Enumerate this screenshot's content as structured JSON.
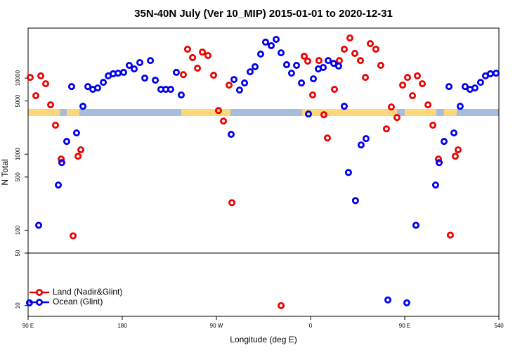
{
  "chart_data": [
    {
      "type": "scatter",
      "title": "35N-40N July (Ver 10_MIP)   2015-01-01 to 2020-12-31",
      "ylabel": "N Total",
      "log_y": true,
      "xlim": [
        90,
        540
      ],
      "ylim": [
        50,
        45400
      ],
      "yticks": [
        100,
        500,
        1000,
        5000,
        10000
      ],
      "series": [
        {
          "color": "#ee0000",
          "x": [
            92,
            97.4,
            102.1,
            106.8,
            111.5,
            116.2,
            121.6,
            133.0,
            137.7,
            140.4,
            238.4,
            242.4,
            247.2,
            251.9,
            256.6,
            261.9,
            267.3,
            272.0,
            276.7,
            282.1,
            284.8,
            353.9,
            357.3,
            362.0,
            368.0,
            372.7,
            376.1,
            382.8,
            387.5,
            392.2,
            397.6,
            402.3,
            407.7,
            412.4,
            417.1,
            422.4,
            427.1,
            432.5,
            437.2,
            442.6,
            448.0,
            452.7,
            457.4,
            462.1,
            466.8,
            472.2,
            476.9,
            482.2,
            493.6,
            498.3,
            501.0
          ],
          "values": [
            10200,
            5870,
            10700,
            8430,
            4450,
            2400,
            861,
            84.3,
            938,
            1140,
            11100,
            24000,
            18600,
            13500,
            22000,
            19800,
            10900,
            3750,
            2720,
            8080,
            230,
            19400,
            16700,
            6000,
            17000,
            3300,
            1630,
            7110,
            17000,
            24000,
            33700,
            21100,
            17000,
            10200,
            28400,
            24000,
            14700,
            2150,
            4170,
            3030,
            8080,
            10200,
            5870,
            10700,
            8430,
            4450,
            2400,
            861,
            86.1,
            938,
            1140
          ]
        },
        {
          "color": "#0000ee",
          "x": [
            100.1,
            118.9,
            122.2,
            126.9,
            131.6,
            136.3,
            142.4,
            147.1,
            151.8,
            156.5,
            161.9,
            166.6,
            171.3,
            176.0,
            181.3,
            186.7,
            191.4,
            196.8,
            201.5,
            206.9,
            211.6,
            216.9,
            221.6,
            226.3,
            231.7,
            236.4,
            284.1,
            286.8,
            292.1,
            296.9,
            302.2,
            306.9,
            312.3,
            317.0,
            322.4,
            327.1,
            331.8,
            337.1,
            341.8,
            346.6,
            351.3,
            358.0,
            362.7,
            367.4,
            372.1,
            376.8,
            382.1,
            386.8,
            392.2,
            396.2,
            402.9,
            408.3,
            413.0,
            460.7,
            479.5,
            482.9,
            487.6,
            492.3,
            497.0,
            503.0,
            507.7,
            512.4,
            517.1,
            522.5,
            527.2,
            531.9,
            537.3
          ],
          "values": [
            116,
            392,
            774,
            1470,
            7740,
            1900,
            4260,
            7740,
            7110,
            7420,
            8790,
            10700,
            11400,
            11600,
            11900,
            14700,
            13200,
            16000,
            10000,
            17000,
            9380,
            7110,
            7110,
            7110,
            11900,
            6000,
            1820,
            9580,
            6960,
            8620,
            12100,
            14100,
            20700,
            29700,
            26700,
            32300,
            21500,
            15000,
            11600,
            14700,
            8620,
            3370,
            9790,
            13200,
            13800,
            17000,
            15600,
            14400,
            4260,
            574,
            245,
            1320,
            1600,
            116,
            392,
            774,
            1470,
            7740,
            1900,
            4260,
            7740,
            7110,
            7420,
            8790,
            10700,
            11400,
            11600
          ]
        }
      ]
    },
    {
      "type": "scatter",
      "xlabel": "Longitude (deg E)",
      "log_y": true,
      "legend": "lower left",
      "xlim": [
        90,
        540
      ],
      "ylim": [
        7.2,
        50
      ],
      "yticks": [
        10,
        50
      ],
      "xticks": [
        {
          "value": 90,
          "label": "90 E"
        },
        180,
        {
          "value": 270,
          "label": "90 W"
        },
        {
          "value": 360,
          "label": "0"
        },
        {
          "value": 450,
          "label": "90 E"
        },
        540
      ],
      "series": [
        {
          "name": "Land (Nadir&Glint)",
          "color": "#ee0000",
          "x": [
            331.8
          ],
          "values": [
            10
          ]
        },
        {
          "name": "Ocean (Glint)",
          "color": "#0000ee",
          "x": [
            91.3,
            433.9,
            452.0
          ],
          "values": [
            10.9,
            11.9,
            10.9
          ]
        }
      ]
    }
  ]
}
